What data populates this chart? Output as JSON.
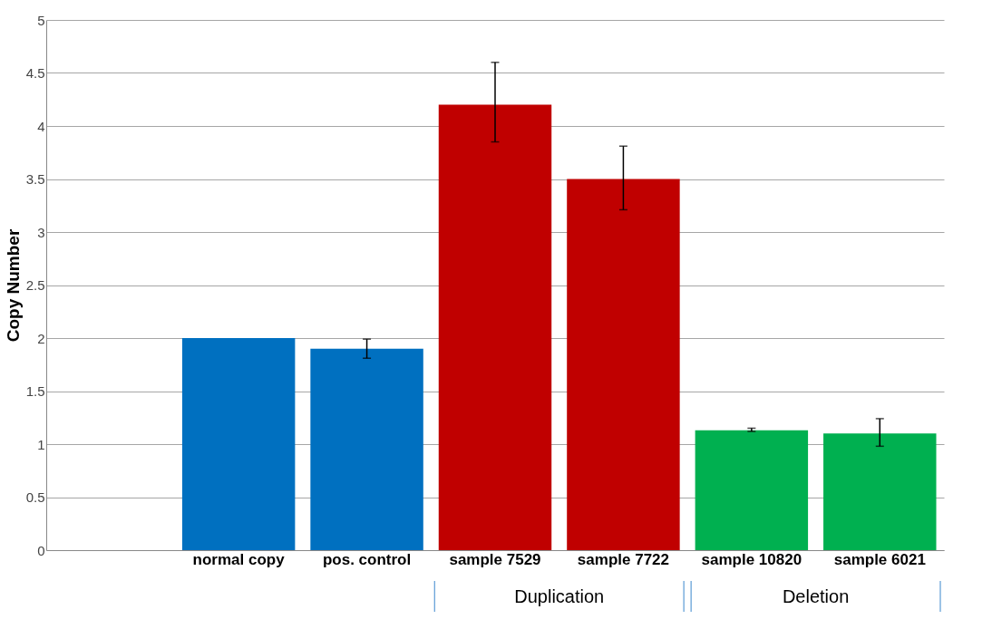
{
  "chart_data": {
    "type": "bar",
    "ylabel": "Copy Number",
    "categories": [
      null,
      "normal copy",
      "pos. control",
      "sample 7529",
      "sample 7722",
      "sample 10820",
      "sample 6021"
    ],
    "values": [
      null,
      2.0,
      1.9,
      4.2,
      3.5,
      1.13,
      1.1
    ],
    "colors": [
      null,
      "#0070c0",
      "#0070c0",
      "#c00000",
      "#c00000",
      "#00b050",
      "#00b050"
    ],
    "errors": [
      null,
      null,
      [
        1.81,
        1.99
      ],
      [
        3.85,
        4.6
      ],
      [
        3.21,
        3.81
      ],
      [
        1.12,
        1.15
      ],
      [
        0.98,
        1.24
      ]
    ],
    "ylim": [
      0,
      5
    ],
    "yticks": [
      0,
      0.5,
      1,
      1.5,
      2,
      2.5,
      3,
      3.5,
      4,
      4.5,
      5
    ],
    "grid": "y",
    "annotations": [
      "Duplication",
      "Deletion"
    ]
  }
}
